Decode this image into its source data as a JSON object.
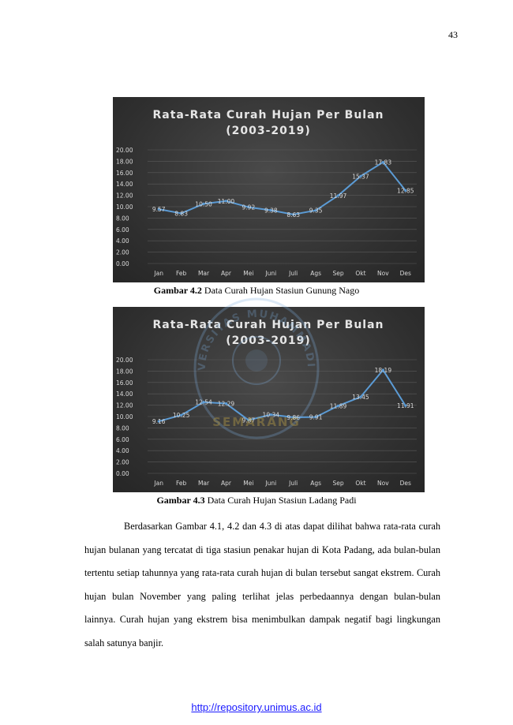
{
  "page_number": "43",
  "chart_data": [
    {
      "type": "line",
      "title_line1": "Rata-Rata Curah Hujan Per Bulan",
      "title_line2": "(2003-2019)",
      "categories": [
        "Jan",
        "Feb",
        "Mar",
        "Apr",
        "Mei",
        "Juni",
        "Juli",
        "Ags",
        "Sep",
        "Okt",
        "Nov",
        "Des"
      ],
      "values": [
        9.57,
        8.83,
        10.5,
        11.0,
        9.92,
        9.38,
        8.63,
        9.35,
        11.97,
        15.37,
        17.83,
        12.85
      ],
      "labels": [
        "9.57",
        "8.83",
        "10.50",
        "11.00",
        "9.92",
        "9.38",
        "8.63",
        "9.35",
        "11.97",
        "15.37",
        "17.83",
        "12.85"
      ],
      "yticks": [
        "0.00",
        "2.00",
        "4.00",
        "6.00",
        "8.00",
        "10.00",
        "12.00",
        "14.00",
        "16.00",
        "18.00",
        "20.00"
      ],
      "ylim": [
        0,
        20
      ],
      "grid": true,
      "line_color": "#5b9bd5"
    },
    {
      "type": "line",
      "title_line1": "Rata-Rata Curah Hujan Per Bulan",
      "title_line2": "(2003-2019)",
      "categories": [
        "Jan",
        "Feb",
        "Mar",
        "Apr",
        "Mei",
        "Juni",
        "Juli",
        "Ags",
        "Sep",
        "Okt",
        "Nov",
        "Des"
      ],
      "values": [
        9.16,
        10.25,
        12.54,
        12.29,
        9.37,
        10.34,
        9.86,
        9.91,
        11.89,
        13.45,
        18.19,
        11.91
      ],
      "labels": [
        "9.16",
        "10.25",
        "12.54",
        "12.29",
        "9.37",
        "10.34",
        "9.86",
        "9.91",
        "11.89",
        "13.45",
        "18.19",
        "11.91"
      ],
      "yticks": [
        "0.00",
        "2.00",
        "4.00",
        "6.00",
        "8.00",
        "10.00",
        "12.00",
        "14.00",
        "16.00",
        "18.00",
        "20.00"
      ],
      "ylim": [
        0,
        20
      ],
      "grid": true,
      "line_color": "#5b9bd5"
    }
  ],
  "captions": [
    {
      "bold": "Gambar 4.2",
      "text": " Data Curah Hujan Stasiun Gunung Nago"
    },
    {
      "bold": "Gambar 4.3",
      "text": " Data Curah Hujan Stasiun Ladang Padi"
    }
  ],
  "watermark_text": [
    "UNIVERSITAS MUHAMMADIYAH",
    "SEMARANG"
  ],
  "paragraph": "Berdasarkan Gambar 4.1, 4.2 dan 4.3 di atas dapat dilihat bahwa rata-rata curah hujan bulanan yang tercatat di tiga stasiun penakar hujan di Kota Padang, ada bulan-bulan tertentu setiap tahunnya yang rata-rata curah hujan di bulan tersebut sangat ekstrem. Curah hujan bulan November  yang paling terlihat jelas perbedaannya dengan bulan-bulan lainnya. Curah hujan yang ekstrem bisa menimbulkan dampak negatif bagi lingkungan salah satunya banjir.",
  "footer_link": "http://repository.unimus.ac.id"
}
